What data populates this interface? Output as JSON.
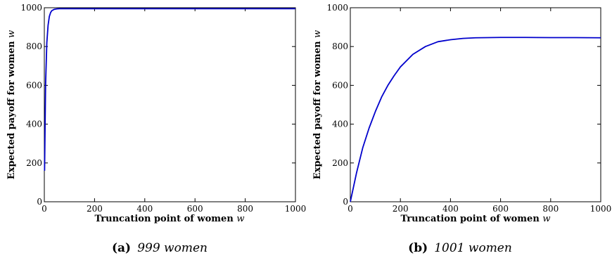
{
  "chart_data": [
    {
      "type": "line",
      "caption_tag": "(a)",
      "caption_text": "999 women",
      "xlabel_main": "Truncation point of women",
      "xlabel_var": "w",
      "ylabel_main": "Expected payoff for women",
      "ylabel_var": "w",
      "xlim": [
        0,
        1000
      ],
      "ylim": [
        0,
        1000
      ],
      "xticks": [
        0,
        200,
        400,
        600,
        800,
        1000
      ],
      "yticks": [
        0,
        200,
        400,
        600,
        800,
        1000
      ],
      "xtick_labels": [
        "0",
        "200",
        "400",
        "600",
        "800",
        "1000"
      ],
      "ytick_labels": [
        "0",
        "200",
        "400",
        "600",
        "800",
        "1000"
      ],
      "grid": false,
      "line_color": "#0000cc",
      "series": [
        {
          "x": [
            1,
            5,
            10,
            15,
            20,
            25,
            30,
            40,
            50,
            60,
            80,
            100,
            200,
            300,
            400,
            500,
            600,
            700,
            800,
            900,
            1000
          ],
          "values": [
            160,
            600,
            820,
            910,
            955,
            975,
            985,
            992,
            994,
            995,
            995,
            995,
            995,
            995,
            995,
            995,
            995,
            995,
            995,
            995,
            995
          ]
        }
      ]
    },
    {
      "type": "line",
      "caption_tag": "(b)",
      "caption_text": "1001 women",
      "xlabel_main": "Truncation point of women",
      "xlabel_var": "w",
      "ylabel_main": "Expected payoff for women",
      "ylabel_var": "w",
      "xlim": [
        0,
        1000
      ],
      "ylim": [
        0,
        1000
      ],
      "xticks": [
        0,
        200,
        400,
        600,
        800,
        1000
      ],
      "yticks": [
        0,
        200,
        400,
        600,
        800,
        1000
      ],
      "xtick_labels": [
        "0",
        "200",
        "400",
        "600",
        "800",
        "1000"
      ],
      "ytick_labels": [
        "0",
        "200",
        "400",
        "600",
        "800",
        "1000"
      ],
      "grid": false,
      "line_color": "#0000cc",
      "series": [
        {
          "x": [
            0,
            25,
            50,
            75,
            100,
            125,
            150,
            175,
            200,
            250,
            300,
            350,
            400,
            450,
            500,
            550,
            600,
            700,
            800,
            900,
            1000
          ],
          "values": [
            0,
            150,
            280,
            380,
            465,
            540,
            600,
            650,
            695,
            760,
            800,
            825,
            835,
            842,
            845,
            846,
            847,
            847,
            846,
            846,
            845
          ]
        }
      ]
    }
  ]
}
